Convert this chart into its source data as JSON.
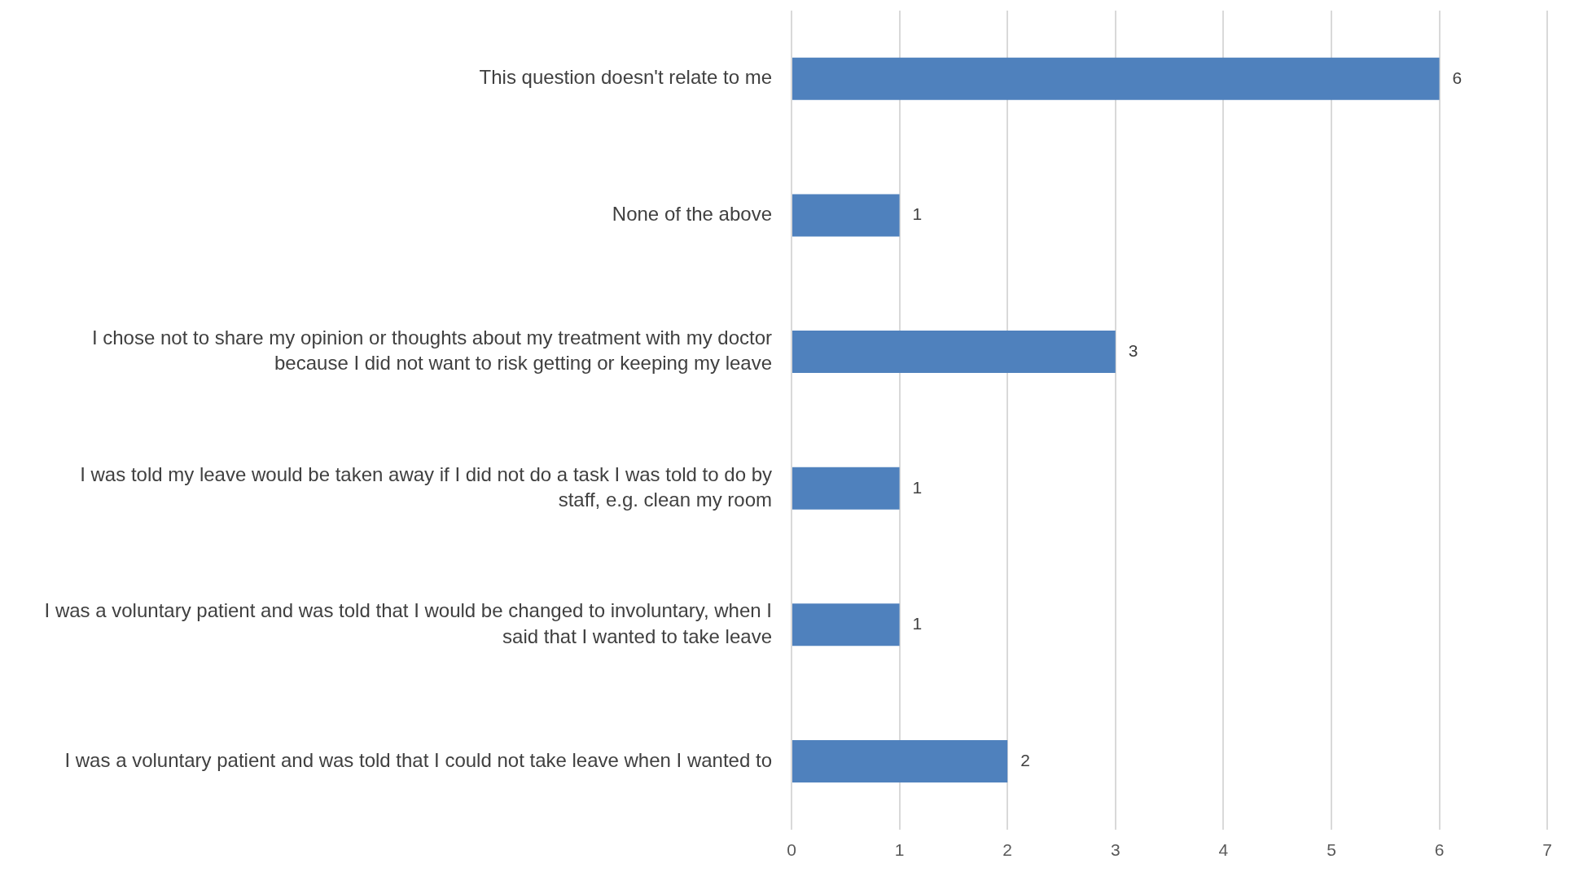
{
  "chart_data": {
    "type": "bar",
    "orientation": "horizontal",
    "categories": [
      "This question doesn't relate to me",
      "None of the above",
      "I chose not to share my opinion or thoughts about my treatment with my doctor because I did not want to risk getting or keeping my leave",
      "I was told my leave would be taken away if I did not do a task I was told to do by staff, e.g. clean my room",
      "I was a voluntary patient and was told that I would be changed to involuntary, when I said that I wanted to take leave",
      "I was a voluntary patient and was told that I could not take leave when I wanted to"
    ],
    "values": [
      6,
      1,
      3,
      1,
      1,
      2
    ],
    "color": "#4f81bd",
    "xlim": [
      0,
      7
    ],
    "xticks": [
      0,
      1,
      2,
      3,
      4,
      5,
      6,
      7
    ],
    "grid": "x",
    "data_labels": true
  }
}
